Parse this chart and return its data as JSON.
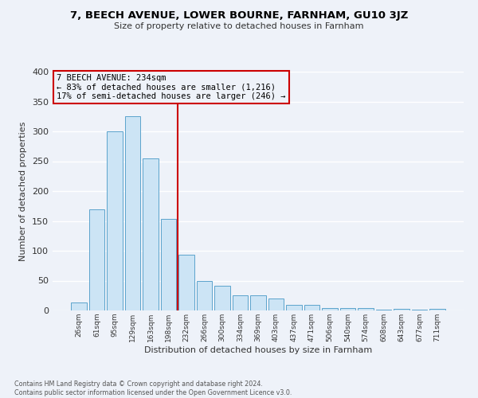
{
  "title": "7, BEECH AVENUE, LOWER BOURNE, FARNHAM, GU10 3JZ",
  "subtitle": "Size of property relative to detached houses in Farnham",
  "xlabel": "Distribution of detached houses by size in Farnham",
  "ylabel": "Number of detached properties",
  "footer_line1": "Contains HM Land Registry data © Crown copyright and database right 2024.",
  "footer_line2": "Contains public sector information licensed under the Open Government Licence v3.0.",
  "bin_labels": [
    "26sqm",
    "61sqm",
    "95sqm",
    "129sqm",
    "163sqm",
    "198sqm",
    "232sqm",
    "266sqm",
    "300sqm",
    "334sqm",
    "369sqm",
    "403sqm",
    "437sqm",
    "471sqm",
    "506sqm",
    "540sqm",
    "574sqm",
    "608sqm",
    "643sqm",
    "677sqm",
    "711sqm"
  ],
  "bar_heights": [
    13,
    170,
    300,
    325,
    255,
    153,
    93,
    49,
    42,
    26,
    25,
    20,
    10,
    10,
    4,
    4,
    4,
    2,
    3,
    2,
    3
  ],
  "bar_color": "#cce4f5",
  "bar_edge_color": "#5ba3cc",
  "property_line_idx": 6,
  "property_line_label": "7 BEECH AVENUE: 234sqm",
  "annotation_line1": "← 83% of detached houses are smaller (1,216)",
  "annotation_line2": "17% of semi-detached houses are larger (246) →",
  "annotation_box_color": "#cc0000",
  "ylim": [
    0,
    400
  ],
  "yticks": [
    0,
    50,
    100,
    150,
    200,
    250,
    300,
    350,
    400
  ],
  "background_color": "#eef2f9"
}
